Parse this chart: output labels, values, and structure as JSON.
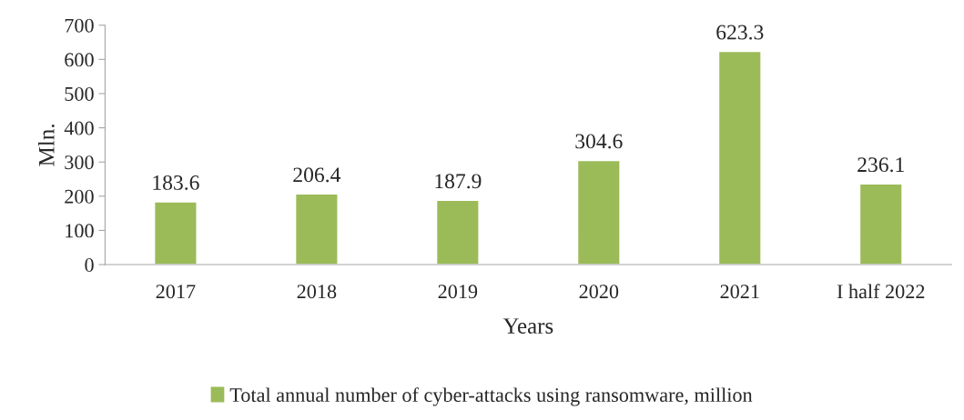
{
  "chart_data": {
    "type": "bar",
    "xlabel": "Years",
    "ylabel": "Mln.",
    "categories": [
      "2017",
      "2018",
      "2019",
      "2020",
      "2021",
      "I half 2022"
    ],
    "series": [
      {
        "name": "Total annual number of cyber-attacks using ransomware, million",
        "color": "#9bbb59",
        "values": [
          183.6,
          206.4,
          187.9,
          304.6,
          623.3,
          236.1
        ]
      }
    ],
    "ylim": [
      0,
      700
    ],
    "yticks": [
      0,
      100,
      200,
      300,
      400,
      500,
      600,
      700
    ],
    "grid": false,
    "legend": "bottom",
    "data_labels": true
  }
}
